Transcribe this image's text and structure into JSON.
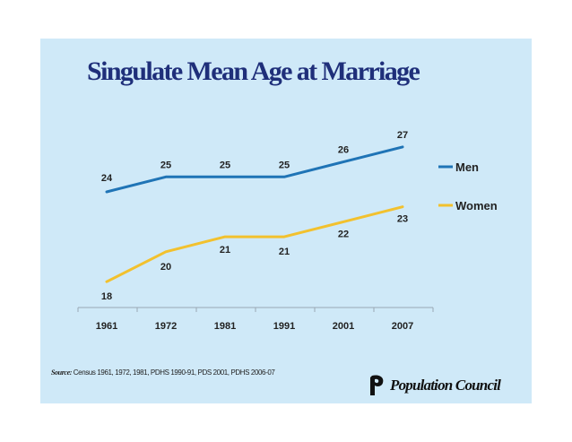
{
  "slide": {
    "title": "Singulate Mean Age at Marriage",
    "source_label": "Source:",
    "source_text": " Census 1961, 1972, 1981, PDHS 1990-91, PDS 2001, PDHS 2006-07",
    "logo_text": "Population Council"
  },
  "colors": {
    "background": "#cfe9f8",
    "title": "#1f2f7a",
    "men": "#1f74b6",
    "women": "#f2c12e"
  },
  "chart_data": {
    "type": "line",
    "title": "Singulate Mean Age at Marriage",
    "categories": [
      "1961",
      "1972",
      "1981",
      "1991",
      "2001",
      "2007"
    ],
    "series": [
      {
        "name": "Men",
        "values": [
          24,
          25,
          25,
          25,
          26,
          27
        ],
        "color": "#1f74b6"
      },
      {
        "name": "Women",
        "values": [
          18,
          20,
          21,
          21,
          22,
          23
        ],
        "color": "#f2c12e"
      }
    ],
    "legend_position": "right",
    "grid": false
  }
}
